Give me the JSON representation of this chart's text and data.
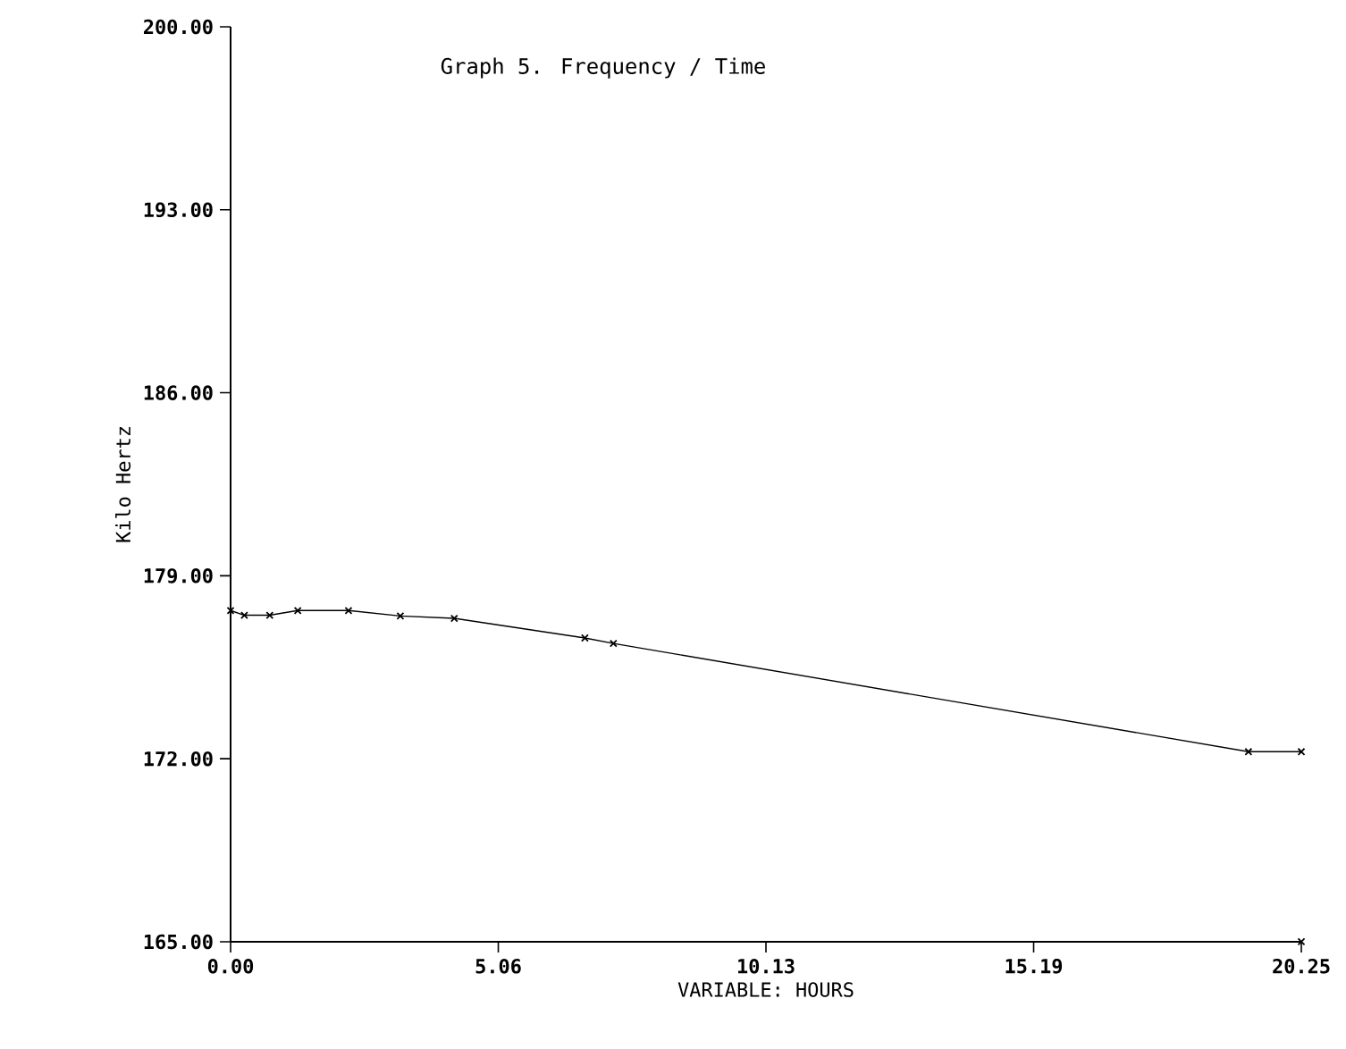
{
  "chart_data": {
    "type": "line",
    "title": "Graph 5. Frequency / Time",
    "xlabel": "VARIABLE:     HOURS",
    "ylabel": "Kilo Hertz",
    "xlim": [
      0,
      20.25
    ],
    "ylim": [
      165,
      200
    ],
    "xticks": [
      {
        "value": 0,
        "label": "0.00"
      },
      {
        "value": 5.0625,
        "label": "5.06"
      },
      {
        "value": 10.125,
        "label": "10.13"
      },
      {
        "value": 15.1875,
        "label": "15.19"
      },
      {
        "value": 20.25,
        "label": "20.25"
      }
    ],
    "yticks": [
      {
        "value": 165,
        "label": "165.00"
      },
      {
        "value": 172,
        "label": "172.00"
      },
      {
        "value": 179,
        "label": "179.00"
      },
      {
        "value": 186,
        "label": "186.00"
      },
      {
        "value": 193,
        "label": "193.00"
      },
      {
        "value": 200,
        "label": "200.00"
      }
    ],
    "marker": "cross",
    "series": [
      {
        "color": "#000000",
        "x": [
          0,
          0.26,
          0.74,
          1.27,
          2.23,
          3.21,
          4.23,
          6.7,
          7.24,
          19.25,
          20.25
        ],
        "values": [
          177.67,
          177.49,
          177.49,
          177.67,
          177.67,
          177.46,
          177.37,
          176.62,
          176.41,
          172.27,
          172.27
        ]
      },
      {
        "type": "scatter",
        "color": "#000000",
        "x": [
          20.25
        ],
        "values": [
          165
        ]
      }
    ]
  }
}
